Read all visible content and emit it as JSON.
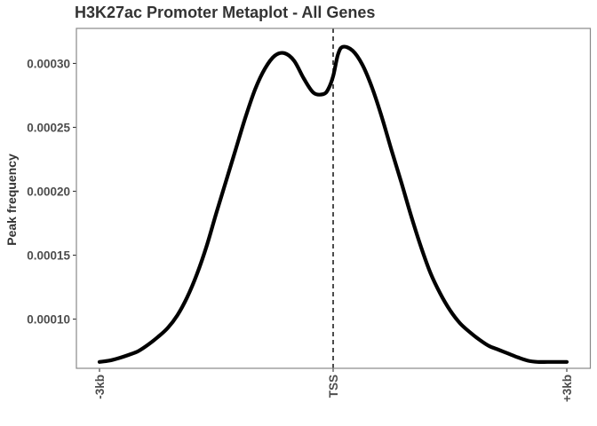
{
  "chart_data": {
    "type": "line",
    "title": "H3K27ac Promoter Metaplot - All Genes",
    "xlabel": "",
    "ylabel": "Peak frequency",
    "xlim": [
      -3000,
      3000
    ],
    "ylim": [
      6.15e-05,
      0.0003274
    ],
    "xticks": [
      {
        "value": -3000,
        "label": "-3kb"
      },
      {
        "value": 0,
        "label": "TSS"
      },
      {
        "value": 3000,
        "label": "+3kb"
      }
    ],
    "yticks": [
      {
        "value": 0.0001,
        "label": "0.00010"
      },
      {
        "value": 0.00015,
        "label": "0.00015"
      },
      {
        "value": 0.0002,
        "label": "0.00020"
      },
      {
        "value": 0.00025,
        "label": "0.00025"
      },
      {
        "value": 0.0003,
        "label": "0.00030"
      }
    ],
    "vline": {
      "x": 0,
      "style": "dashed"
    },
    "grid": false,
    "line_color": "#000000",
    "series": [
      {
        "x": [
          -3000,
          -2875,
          -2750,
          -2625,
          -2500,
          -2375,
          -2250,
          -2125,
          -2000,
          -1875,
          -1750,
          -1625,
          -1500,
          -1375,
          -1250,
          -1125,
          -1000,
          -875,
          -750,
          -625,
          -500,
          -375,
          -250,
          -125,
          -62,
          0,
          62,
          125,
          250,
          375,
          500,
          625,
          750,
          875,
          1000,
          1125,
          1250,
          1375,
          1500,
          1625,
          1750,
          1875,
          2000,
          2125,
          2250,
          2375,
          2500,
          2625,
          2750,
          2875,
          3000
        ],
        "y": [
          6.65e-05,
          6.75e-05,
          6.95e-05,
          7.2e-05,
          7.5e-05,
          8e-05,
          8.6e-05,
          9.3e-05,
          0.000103,
          0.000117,
          0.000135,
          0.000157,
          0.000183,
          0.000208,
          0.000233,
          0.000258,
          0.00028,
          0.000296,
          0.000306,
          0.000308,
          0.000302,
          0.000288,
          0.000277,
          0.000276,
          0.00028,
          0.00029,
          0.000307,
          0.000313,
          0.00031,
          0.000299,
          0.000281,
          0.000258,
          0.000232,
          0.000207,
          0.000181,
          0.000157,
          0.000136,
          0.00012,
          0.000107,
          9.7e-05,
          9e-05,
          8.4e-05,
          7.9e-05,
          7.6e-05,
          7.3e-05,
          7e-05,
          6.75e-05,
          6.65e-05,
          6.65e-05,
          6.65e-05,
          6.65e-05
        ]
      }
    ]
  }
}
